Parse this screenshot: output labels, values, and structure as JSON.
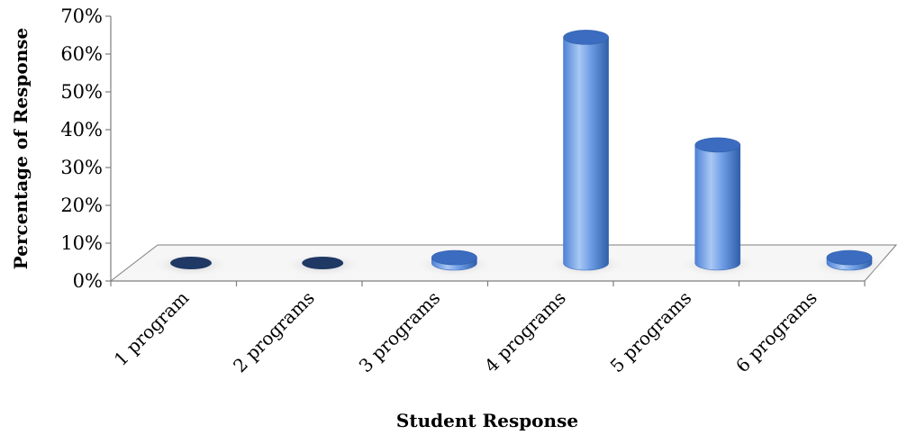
{
  "chart_data": {
    "type": "bar",
    "style": "3d-cylinder",
    "categories": [
      "1 program",
      "2 programs",
      "3 programs",
      "4 programs",
      "5 programs",
      "6 programs"
    ],
    "values": [
      0,
      0,
      1,
      65,
      34,
      1
    ],
    "ylim": [
      0,
      70
    ],
    "yticks": [
      "0%",
      "10%",
      "20%",
      "30%",
      "40%",
      "50%",
      "60%",
      "70%"
    ],
    "xlabel": "Student Response",
    "ylabel": "Percentage of Response",
    "grid": false,
    "legend": "none",
    "colors": {
      "bar_light": "#a9c8f4",
      "bar_mid": "#5b8ee0",
      "bar_dark": "#2f5fa8",
      "bar_top": "#3b6cc0",
      "zero_disc": "#1f3864",
      "floor": "#f6f6f6"
    }
  }
}
